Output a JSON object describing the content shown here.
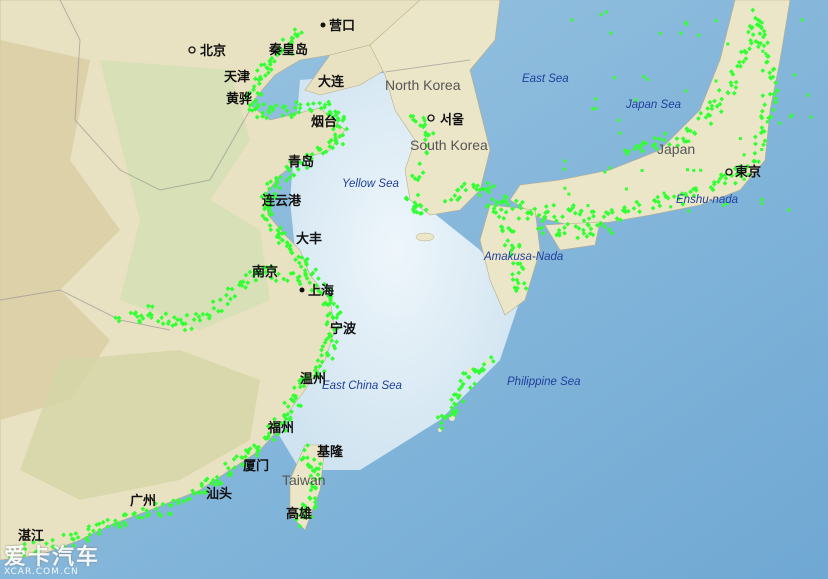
{
  "colors": {
    "sea": "#b7d6ea",
    "land": "#efe7c8",
    "station": "#33ff33"
  },
  "countries": [
    "North Korea",
    "South Korea",
    "Japan",
    "Taiwan"
  ],
  "seas": [
    "East Sea",
    "Japan Sea",
    "Yellow Sea",
    "East China Sea",
    "Philippine Sea",
    "Amakusa-Nada",
    "Enshu-nada"
  ],
  "cities": [
    "营口",
    "北京",
    "秦皇岛",
    "天津",
    "大连",
    "黄骅",
    "烟台",
    "서울",
    "青岛",
    "连云港",
    "大丰",
    "南京",
    "上海",
    "宁波",
    "温州",
    "福州",
    "基隆",
    "厦门",
    "汕头",
    "高雄",
    "广州",
    "湛江",
    "東京"
  ],
  "watermark": {
    "main": "爱卡汽车",
    "sub": "XCAR.COM.CN"
  }
}
